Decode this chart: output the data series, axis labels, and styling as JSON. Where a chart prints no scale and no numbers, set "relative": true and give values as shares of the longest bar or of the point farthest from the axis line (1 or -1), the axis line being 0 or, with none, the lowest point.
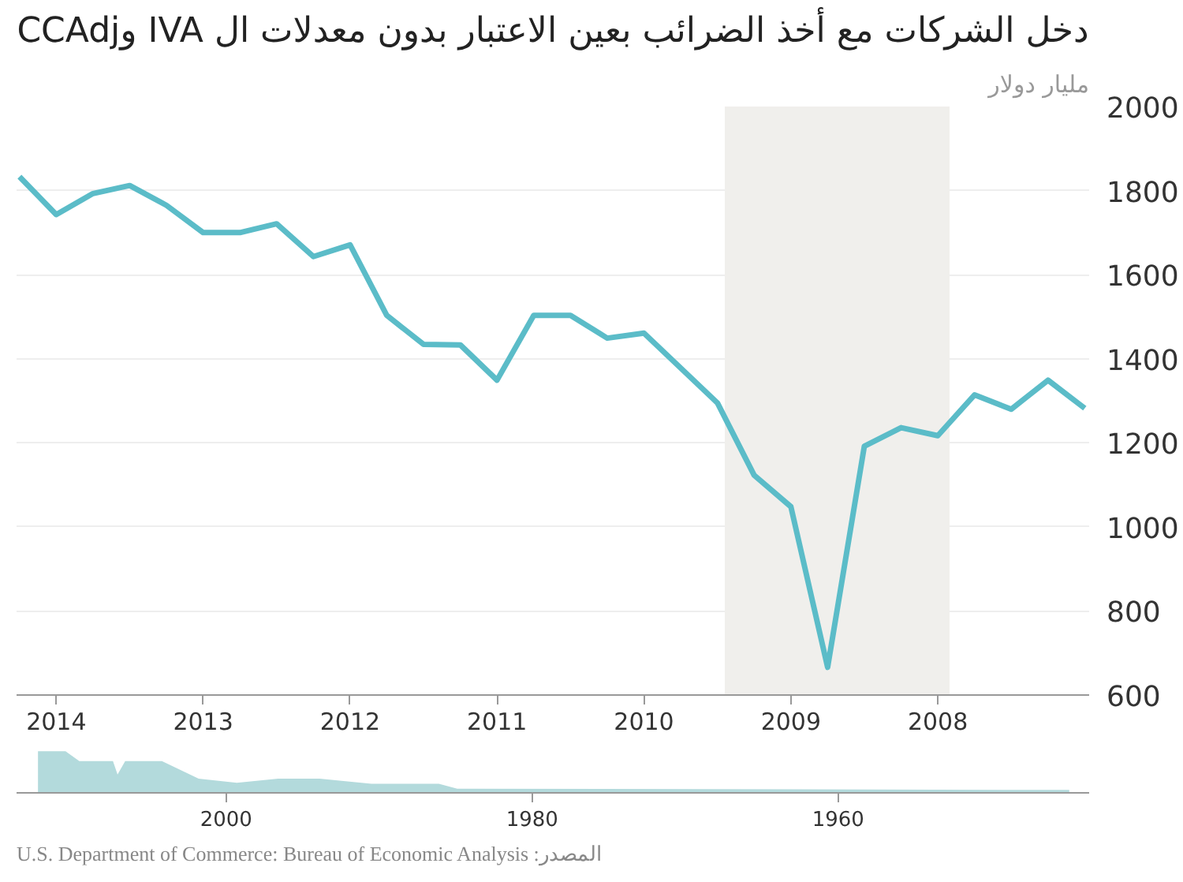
{
  "chart_data": [
    {
      "type": "line",
      "title": "دخل الشركات مع أخذ الضرائب بعين الاعتبار بدون معدلات ال IVA وCCAdj",
      "ylabel": "مليار دولار",
      "x": [
        2014.25,
        2014.0,
        2013.75,
        2013.5,
        2013.25,
        2013.0,
        2012.75,
        2012.5,
        2012.25,
        2012.0,
        2011.75,
        2011.5,
        2011.25,
        2011.0,
        2010.75,
        2010.5,
        2010.25,
        2010.0,
        2009.75,
        2009.5,
        2009.25,
        2009.0,
        2008.75,
        2008.5,
        2008.25,
        2008.0,
        2007.75,
        2007.5,
        2007.25,
        2007.0
      ],
      "series": [
        {
          "color": "#5bbcc8",
          "values": [
            1833,
            1743,
            1793,
            1812,
            1765,
            1700,
            1700,
            1721,
            1643,
            1671,
            1503,
            1434,
            1433,
            1349,
            1503,
            1503,
            1449,
            1461,
            1378,
            1295,
            1123,
            1048,
            666,
            1192,
            1236,
            1217,
            1314,
            1280,
            1349,
            1282
          ]
        }
      ],
      "xlim": [
        2014.27,
        2006.97
      ],
      "xticks": [
        2014,
        2013,
        2012,
        2011,
        2010,
        2009,
        2008
      ],
      "ylim": [
        600,
        2000
      ],
      "yticks": [
        600,
        800,
        1000,
        1200,
        1400,
        1600,
        1800,
        2000
      ],
      "bands": [
        {
          "axis": "x",
          "from": 2009.45,
          "to": 2007.92,
          "color": "#f0efec"
        }
      ],
      "grid": "y",
      "line_style": "solid",
      "marker": "none"
    },
    {
      "type": "area",
      "relative": true,
      "x": [
        2012.3,
        2010.5,
        2009.6,
        2007.4,
        2007.1,
        2006.6,
        2004.2,
        2001.8,
        1999.3,
        1996.6,
        1993.9,
        1990.5,
        1986.1,
        1984.9,
        1944.9
      ],
      "series": [
        {
          "color": "#b3dadc",
          "values": [
            1.0,
            1.0,
            0.76,
            0.76,
            0.44,
            0.76,
            0.76,
            0.34,
            0.24,
            0.34,
            0.34,
            0.22,
            0.22,
            0.1,
            0.07
          ]
        }
      ],
      "xlim": [
        2013.7,
        1943.6
      ],
      "xticks": [
        2000,
        1980,
        1960
      ],
      "tick_labels": "x",
      "grid": false,
      "annotations": [
        "U.S. Department of Commerce: Bureau of Economic Analysis :المصدر"
      ]
    }
  ]
}
